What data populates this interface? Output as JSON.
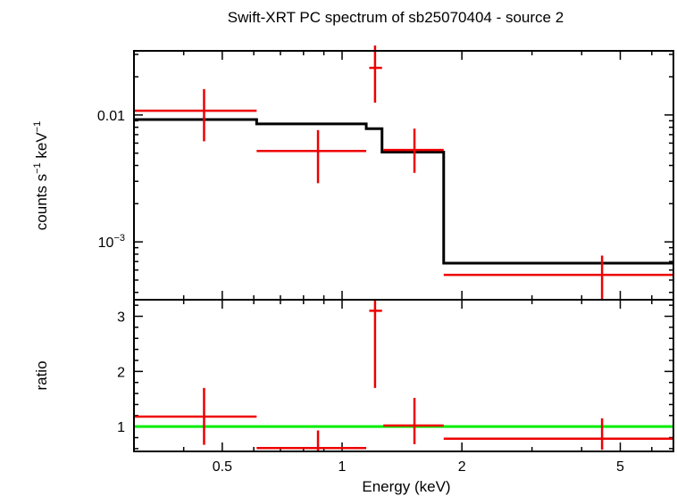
{
  "title": "Swift-XRT PC spectrum of sb25070404 - source 2",
  "colors": {
    "data": "#ee0000",
    "model": "#000000",
    "ratio_line": "#00ee00"
  },
  "chart_data": [
    {
      "panel": "spectrum",
      "type": "scatter",
      "ylabel_main": "counts s",
      "ylabel_sup1": "−1",
      "ylabel_mid": " keV",
      "ylabel_sup2": "−1",
      "xscale": "log",
      "yscale": "log",
      "xlim": [
        0.3,
        6.8
      ],
      "ylim": [
        0.00035,
        0.032
      ],
      "yticks": [
        {
          "value": 0.01,
          "base": "0.01",
          "sup": ""
        },
        {
          "value": 0.001,
          "base": "10",
          "sup": "−3"
        }
      ],
      "points": [
        {
          "x": 0.45,
          "xlo": 0.3,
          "xhi": 0.61,
          "y": 0.0108,
          "ylo": 0.0062,
          "yhi": 0.016
        },
        {
          "x": 0.87,
          "xlo": 0.61,
          "xhi": 1.15,
          "y": 0.0052,
          "ylo": 0.0029,
          "yhi": 0.0076
        },
        {
          "x": 1.21,
          "xlo": 1.17,
          "xhi": 1.26,
          "y": 0.0235,
          "ylo": 0.0125,
          "yhi": 0.037
        },
        {
          "x": 1.52,
          "xlo": 1.27,
          "xhi": 1.8,
          "y": 0.0053,
          "ylo": 0.0035,
          "yhi": 0.0078
        },
        {
          "x": 4.5,
          "xlo": 1.8,
          "xhi": 6.8,
          "y": 0.00055,
          "ylo": 0.00033,
          "yhi": 0.00078
        }
      ],
      "model_steps": [
        {
          "x0": 0.3,
          "x1": 0.61,
          "y": 0.0092
        },
        {
          "x0": 0.61,
          "x1": 1.15,
          "y": 0.0085
        },
        {
          "x0": 1.15,
          "x1": 1.26,
          "y": 0.0078
        },
        {
          "x0": 1.26,
          "x1": 1.8,
          "y": 0.0051
        },
        {
          "x0": 1.8,
          "x1": 6.8,
          "y": 0.00068
        }
      ]
    },
    {
      "panel": "ratio",
      "type": "scatter",
      "xlabel": "Energy (keV)",
      "ylabel": "ratio",
      "xscale": "log",
      "yscale": "linear",
      "xlim": [
        0.3,
        6.8
      ],
      "ylim": [
        0.55,
        3.3
      ],
      "xticks": [
        {
          "value": 0.5,
          "label": "0.5"
        },
        {
          "value": 1,
          "label": "1"
        },
        {
          "value": 2,
          "label": "2"
        },
        {
          "value": 5,
          "label": "5"
        }
      ],
      "yticks": [
        {
          "value": 1,
          "label": "1"
        },
        {
          "value": 2,
          "label": "2"
        },
        {
          "value": 3,
          "label": "3"
        }
      ],
      "reference_line": 1,
      "points": [
        {
          "x": 0.45,
          "xlo": 0.3,
          "xhi": 0.61,
          "y": 1.18,
          "ylo": 0.67,
          "yhi": 1.7
        },
        {
          "x": 0.87,
          "xlo": 0.61,
          "xhi": 1.15,
          "y": 0.61,
          "ylo": 0.55,
          "yhi": 0.93
        },
        {
          "x": 1.21,
          "xlo": 1.17,
          "xhi": 1.26,
          "y": 3.1,
          "ylo": 1.7,
          "yhi": 3.3
        },
        {
          "x": 1.52,
          "xlo": 1.27,
          "xhi": 1.8,
          "y": 1.02,
          "ylo": 0.68,
          "yhi": 1.52
        },
        {
          "x": 4.5,
          "xlo": 1.8,
          "xhi": 6.8,
          "y": 0.78,
          "ylo": 0.58,
          "yhi": 1.15
        }
      ]
    }
  ]
}
